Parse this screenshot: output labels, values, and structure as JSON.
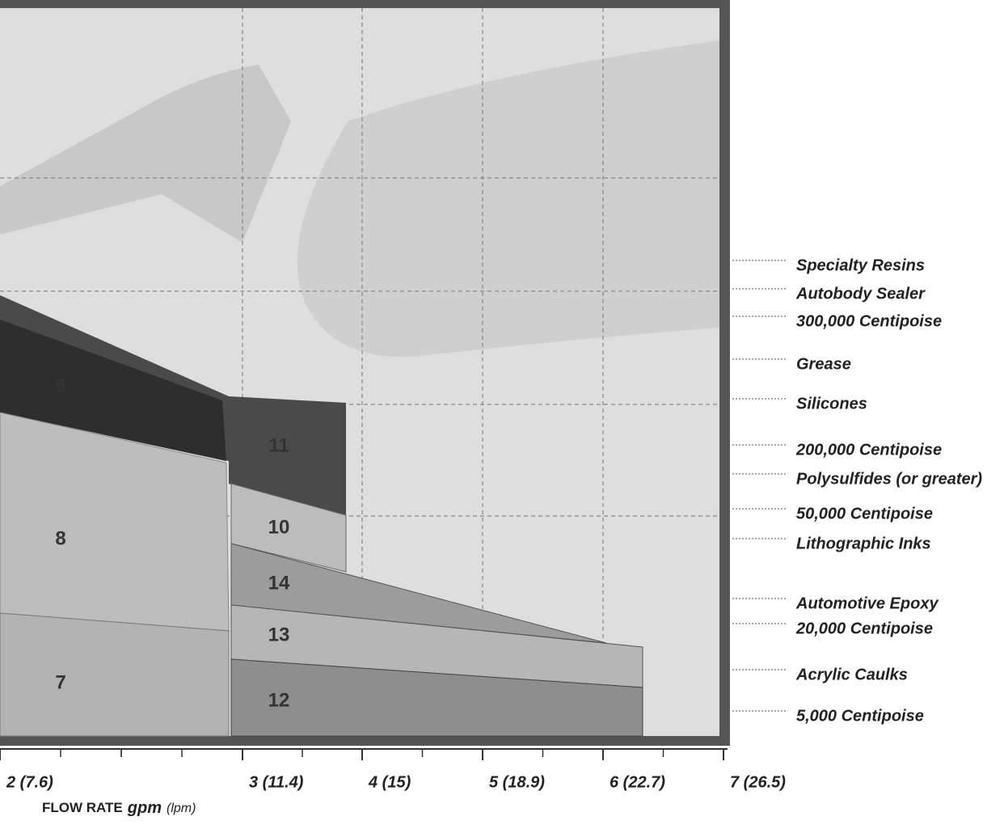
{
  "axis": {
    "ticks": [
      "2 (7.6)",
      "3 (11.4)",
      "4 (15)",
      "5 (18.9)",
      "6 (22.7)",
      "7 (26.5)"
    ],
    "title": "FLOW RATE",
    "unit": "gpm",
    "alt_unit": "(lpm)"
  },
  "materials": [
    "Specialty Resins",
    "Autobody Sealer",
    "300,000 Centipoise",
    "Grease",
    "Silicones",
    "200,000 Centipoise",
    "Polysulfides (or greater)",
    "50,000 Centipoise",
    "Lithographic Inks",
    "Automotive Epoxy",
    "20,000 Centipoise",
    "Acrylic Caulks",
    "5,000 Centipoise"
  ],
  "regions": [
    "9",
    "11",
    "8",
    "10",
    "14",
    "13",
    "7",
    "12"
  ]
}
